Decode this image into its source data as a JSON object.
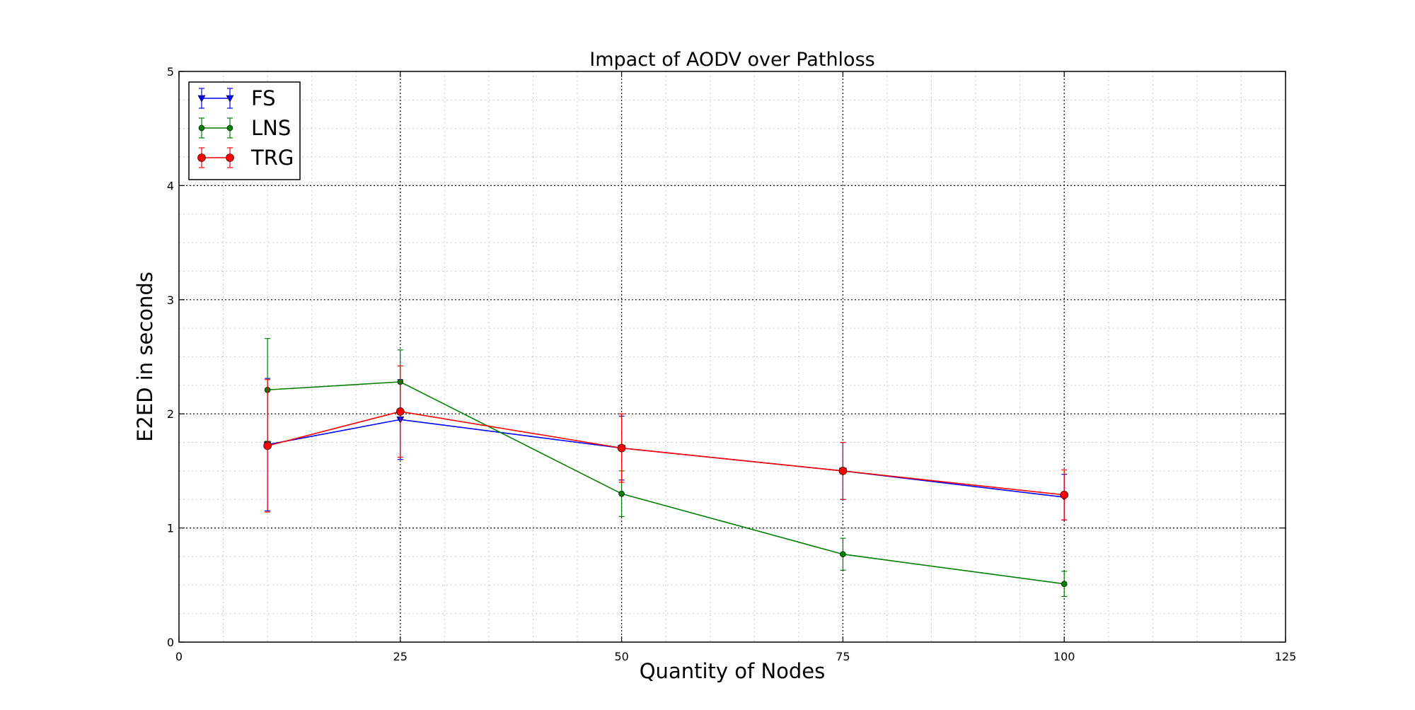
{
  "chart_data": {
    "type": "line",
    "title": "Impact of AODV over Pathloss",
    "xlabel": "Quantity of Nodes",
    "ylabel": "E2ED in seconds",
    "xlim": [
      0,
      125
    ],
    "ylim": [
      0,
      5
    ],
    "xticks": [
      0,
      25,
      50,
      75,
      100,
      125
    ],
    "yticks": [
      0,
      1,
      2,
      3,
      4,
      5
    ],
    "major_grid": true,
    "minor_grid": true,
    "legend_position": "top-left",
    "x": [
      10,
      25,
      50,
      75,
      100
    ],
    "series": [
      {
        "name": "FS",
        "color": "#0000ff",
        "marker": "triangle-down",
        "values": [
          1.73,
          1.95,
          1.7,
          1.5,
          1.27
        ],
        "errors": [
          0.58,
          0.35,
          0.28,
          0.25,
          0.2
        ]
      },
      {
        "name": "LNS",
        "color": "#007f00",
        "marker": "dot",
        "values": [
          2.21,
          2.28,
          1.3,
          0.77,
          0.51
        ],
        "errors": [
          0.45,
          0.28,
          0.2,
          0.14,
          0.11
        ]
      },
      {
        "name": "TRG",
        "color": "#ff0000",
        "marker": "circle",
        "values": [
          1.72,
          2.02,
          1.7,
          1.5,
          1.29
        ],
        "errors": [
          0.58,
          0.4,
          0.3,
          0.25,
          0.22
        ]
      }
    ]
  }
}
